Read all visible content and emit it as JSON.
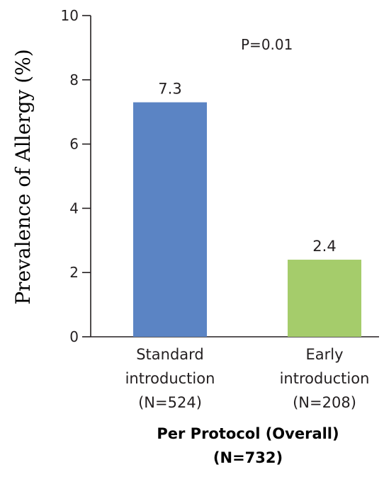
{
  "chart_data": {
    "type": "bar",
    "ylabel": "Prevalence of Allergy (%)",
    "xtitle_lines": [
      "Per Protocol (Overall)",
      "(N=732)"
    ],
    "ylim": [
      0,
      10
    ],
    "yticks": [
      "0",
      "2",
      "4",
      "6",
      "8",
      "10"
    ],
    "ytick_values": [
      0,
      2,
      4,
      6,
      8,
      10
    ],
    "annotation": "P=0.01",
    "grid": false,
    "categories": [
      {
        "lines": [
          "Standard",
          "introduction",
          "(N=524)"
        ]
      },
      {
        "lines": [
          "Early",
          "introduction",
          "(N=208)"
        ]
      }
    ],
    "values": [
      7.3,
      2.4
    ],
    "value_labels": [
      "7.3",
      "2.4"
    ],
    "colors": [
      "#5b84c4",
      "#a5cc6b"
    ]
  }
}
